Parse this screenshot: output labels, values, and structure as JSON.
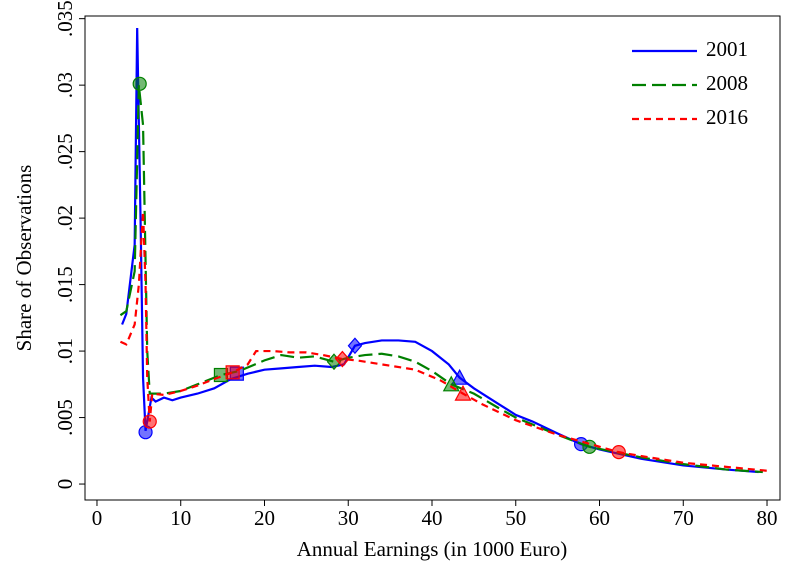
{
  "chart_data": {
    "type": "line",
    "x_label": "Annual Earnings (in 1000 Euro)",
    "y_label": "Share of Observations",
    "xlim": [
      -1.43,
      81.55
    ],
    "ylim": [
      -0.0012,
      0.0352
    ],
    "xticks": [
      0,
      10,
      20,
      30,
      40,
      50,
      60,
      70,
      80
    ],
    "yticks": [
      0,
      {
        "value": 0.005,
        "label": ".005"
      },
      {
        "value": 0.01,
        "label": ".01"
      },
      {
        "value": 0.015,
        "label": ".015"
      },
      {
        "value": 0.02,
        "label": ".02"
      },
      {
        "value": 0.025,
        "label": ".025"
      },
      {
        "value": 0.03,
        "label": ".03"
      },
      {
        "value": 0.035,
        "label": ".035"
      }
    ],
    "legend_position": "top-right",
    "series": [
      {
        "name": "2001",
        "color": "#0000ff",
        "dash": "solid",
        "x": [
          3,
          3.5,
          4.5,
          4.8,
          5.2,
          5.5,
          5.8,
          6.5,
          7,
          8,
          9,
          10,
          12,
          14,
          16,
          18,
          20,
          22,
          24,
          26,
          28,
          29.5,
          30.8,
          32,
          34,
          36,
          38,
          40,
          42,
          43.3,
          45,
          48,
          50,
          52,
          55,
          57.8,
          60,
          65,
          70,
          75,
          79
        ],
        "values": [
          0.012,
          0.0128,
          0.018,
          0.0343,
          0.02,
          0.008,
          0.004,
          0.0065,
          0.0062,
          0.0065,
          0.0063,
          0.0065,
          0.0068,
          0.0072,
          0.0079,
          0.0083,
          0.0086,
          0.0087,
          0.0088,
          0.0089,
          0.0088,
          0.009,
          0.0104,
          0.0106,
          0.0108,
          0.0108,
          0.0107,
          0.01,
          0.009,
          0.008,
          0.0072,
          0.006,
          0.0052,
          0.0047,
          0.0038,
          0.003,
          0.0026,
          0.0019,
          0.0014,
          0.0011,
          0.0009
        ],
        "marker_x": [
          5.8,
          16.7,
          30.8,
          43.3,
          57.8
        ],
        "marker_values": [
          0.0039,
          0.0083,
          0.0104,
          0.008,
          0.003
        ],
        "marker_shapes": [
          "circle",
          "square",
          "diamond",
          "triangle",
          "circle"
        ]
      },
      {
        "name": "2008",
        "color": "#008000",
        "dash": "long",
        "x": [
          2.8,
          3.5,
          4.5,
          5,
          5.5,
          6,
          6.3,
          8,
          10,
          12,
          14.8,
          17,
          20,
          22,
          24,
          26,
          28.3,
          30,
          32,
          34,
          36,
          38,
          40,
          42.3,
          45,
          48,
          50,
          55,
          58.8,
          65,
          70,
          75,
          79.5
        ],
        "values": [
          0.0127,
          0.013,
          0.016,
          0.03,
          0.027,
          0.01,
          0.0068,
          0.0068,
          0.007,
          0.0075,
          0.0082,
          0.0085,
          0.0093,
          0.0097,
          0.0095,
          0.0096,
          0.0092,
          0.0095,
          0.0097,
          0.0098,
          0.0096,
          0.0092,
          0.0085,
          0.0075,
          0.0068,
          0.0057,
          0.005,
          0.0037,
          0.0028,
          0.002,
          0.0015,
          0.0011,
          0.0009
        ],
        "marker_x": [
          5.1,
          14.8,
          28.3,
          42.3,
          58.8
        ],
        "marker_values": [
          0.0301,
          0.0082,
          0.0092,
          0.0075,
          0.0028
        ],
        "marker_shapes": [
          "circle",
          "square",
          "diamond",
          "triangle",
          "circle"
        ]
      },
      {
        "name": "2016",
        "color": "#ff0000",
        "dash": "short",
        "x": [
          2.8,
          3.5,
          4.5,
          5,
          5.5,
          5.8,
          6,
          6.3,
          6.6,
          8,
          10,
          12,
          14,
          16.2,
          18,
          19,
          21,
          23,
          25,
          27,
          29.3,
          31,
          33,
          35,
          38,
          41,
          43.7,
          46,
          50,
          55,
          62.3,
          65,
          70,
          75,
          80
        ],
        "values": [
          0.0107,
          0.0105,
          0.012,
          0.015,
          0.0205,
          0.015,
          0.008,
          0.0047,
          0.0068,
          0.0067,
          0.007,
          0.0074,
          0.0079,
          0.0084,
          0.009,
          0.01,
          0.01,
          0.0099,
          0.0099,
          0.0097,
          0.0094,
          0.0093,
          0.0091,
          0.0089,
          0.0086,
          0.0078,
          0.0068,
          0.006,
          0.0048,
          0.0037,
          0.0024,
          0.0021,
          0.0016,
          0.0013,
          0.001
        ],
        "marker_x": [
          6.3,
          16.2,
          29.3,
          43.7,
          62.3
        ],
        "marker_values": [
          0.0047,
          0.0084,
          0.0094,
          0.0068,
          0.0024
        ],
        "marker_shapes": [
          "circle",
          "square",
          "diamond",
          "triangle",
          "circle"
        ]
      }
    ]
  }
}
